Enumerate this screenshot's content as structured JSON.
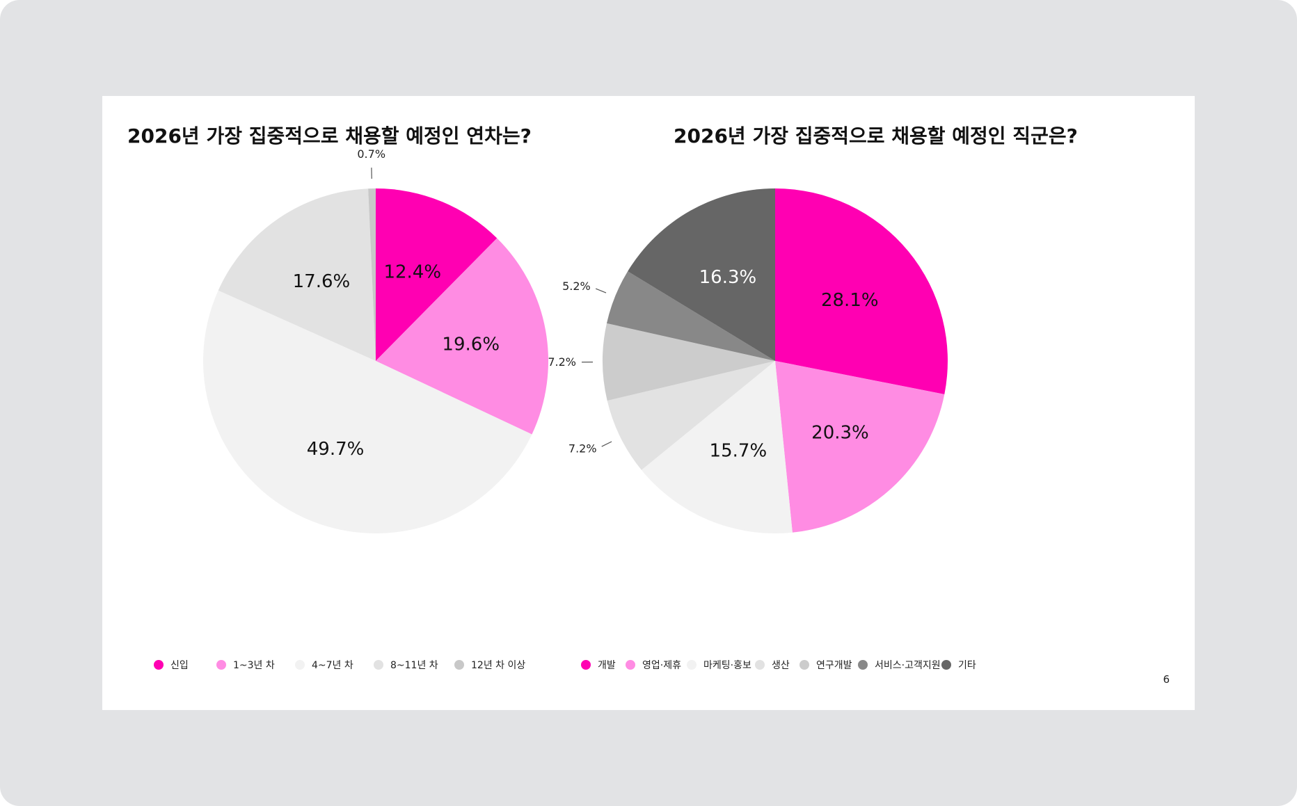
{
  "page_number": "6",
  "chart_data": [
    {
      "type": "pie",
      "title": "2026년 가장 집중적으로 채용할 예정인 연차는?",
      "categories": [
        "신입",
        "1~3년 차",
        "4~7년 차",
        "8~11년 차",
        "12년 차 이상"
      ],
      "values": [
        12.4,
        19.6,
        49.7,
        17.6,
        0.7
      ],
      "labels": [
        "12.4%",
        "19.6%",
        "49.7%",
        "17.6%",
        "0.7%"
      ],
      "colors": [
        "#ff00b2",
        "#ff8ce3",
        "#f2f2f2",
        "#e2e2e2",
        "#c8c8c8"
      ],
      "label_colors": [
        "#111111",
        "#111111",
        "#111111",
        "#111111",
        "#111111"
      ],
      "outside_labels": [
        false,
        false,
        false,
        false,
        true
      ],
      "legend_position": "bottom"
    },
    {
      "type": "pie",
      "title": "2026년 가장 집중적으로 채용할 예정인 직군은?",
      "categories": [
        "개발",
        "영업·제휴",
        "마케팅·홍보",
        "생산",
        "연구개발",
        "서비스·고객지원",
        "기타"
      ],
      "values": [
        28.1,
        20.3,
        15.7,
        7.2,
        7.2,
        5.2,
        16.3
      ],
      "labels": [
        "28.1%",
        "20.3%",
        "15.7%",
        "7.2%",
        "7.2%",
        "5.2%",
        "16.3%"
      ],
      "colors": [
        "#ff00b2",
        "#ff8ce3",
        "#f2f2f2",
        "#e2e2e2",
        "#cccccc",
        "#888888",
        "#666666"
      ],
      "label_colors": [
        "#111111",
        "#111111",
        "#111111",
        "#111111",
        "#111111",
        "#111111",
        "#ffffff"
      ],
      "outside_labels": [
        false,
        false,
        false,
        true,
        true,
        true,
        false
      ],
      "legend_position": "bottom"
    }
  ]
}
